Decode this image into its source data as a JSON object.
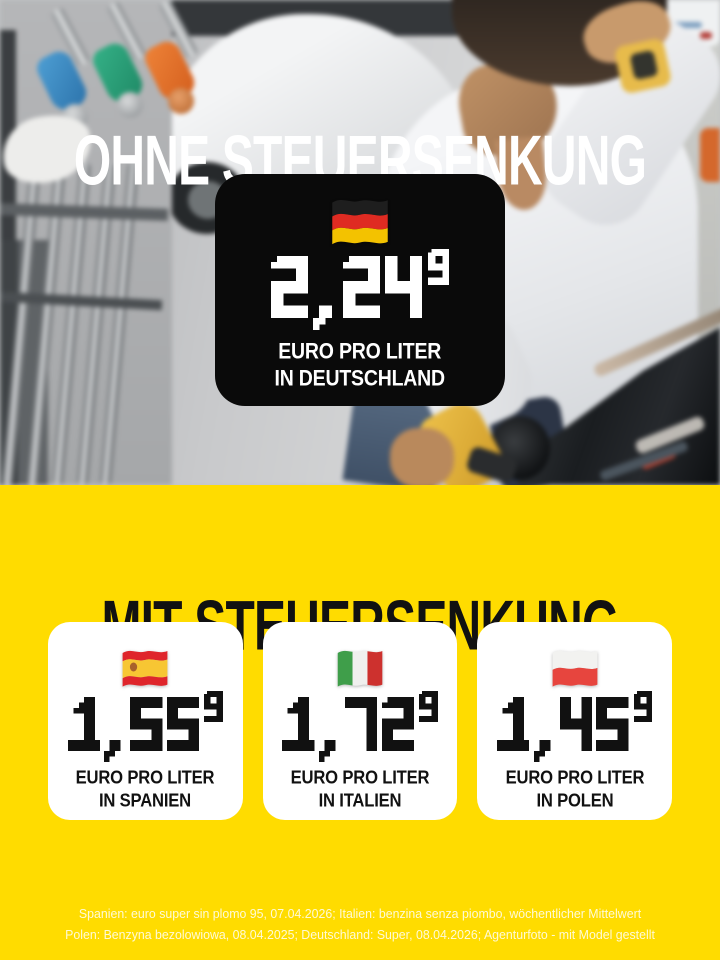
{
  "poster": {
    "top": {
      "headline": "OHNE STEUERSENKUNG",
      "price_card": {
        "flag": "germany",
        "price": "2,24",
        "price_superscript": "9",
        "unit_line1": "EURO PRO LITER",
        "unit_line2": "IN DEUTSCHLAND"
      }
    },
    "bottom": {
      "headline": "MIT STEUERSENKUNG",
      "price_cards": [
        {
          "flag": "spain",
          "price": "1,55",
          "price_superscript": "9",
          "unit_line1": "EURO PRO LITER",
          "unit_line2": "IN SPANIEN"
        },
        {
          "flag": "italy",
          "price": "1,72",
          "price_superscript": "9",
          "unit_line1": "EURO PRO LITER",
          "unit_line2": "IN ITALIEN"
        },
        {
          "flag": "poland",
          "price": "1,45",
          "price_superscript": "9",
          "unit_line1": "EURO PRO LITER",
          "unit_line2": "IN POLEN"
        }
      ],
      "footnotes": [
        "Spanien: euro super sin plomo 95, 07.04.2026; Italien: benzina senza piombo, wöchentlicher Mittelwert",
        "Polen: Benzyna bezolowiowa, 08.04.2025; Deutschland: Super, 08.04.2026; Agenturfoto - mit Model gestellt"
      ]
    },
    "colors": {
      "background_yellow": "#ffdc00",
      "card_black": "#0a0a0a",
      "card_white": "#ffffff",
      "headline_top": "#ffffff",
      "headline_bottom": "#111111"
    }
  }
}
